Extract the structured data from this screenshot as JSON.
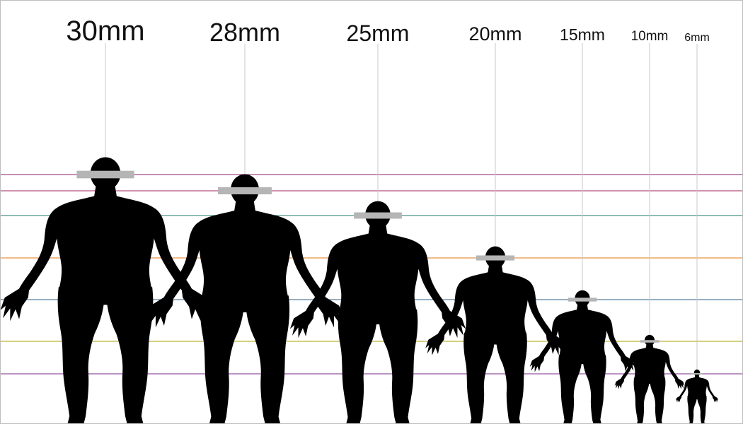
{
  "figures": [
    {
      "label": "30mm",
      "color_line": "#8b1f6e"
    },
    {
      "label": "28mm",
      "color_line": "#a3265a"
    },
    {
      "label": "25mm",
      "color_line": "#1c7a68"
    },
    {
      "label": "20mm",
      "color_line": "#e07a12"
    },
    {
      "label": "15mm",
      "color_line": "#2e5f86"
    },
    {
      "label": "10mm",
      "color_line": "#a8a200"
    },
    {
      "label": "6mm",
      "color_line": "#7a2a8a"
    }
  ],
  "colors": {
    "silhouette": "#000000",
    "head_band": "#b5b5b5",
    "leader_line": "#c8c8c8",
    "background": "#ffffff",
    "frame": "#bdbdbd"
  },
  "icon_names": [
    "human-silhouette-icon"
  ]
}
